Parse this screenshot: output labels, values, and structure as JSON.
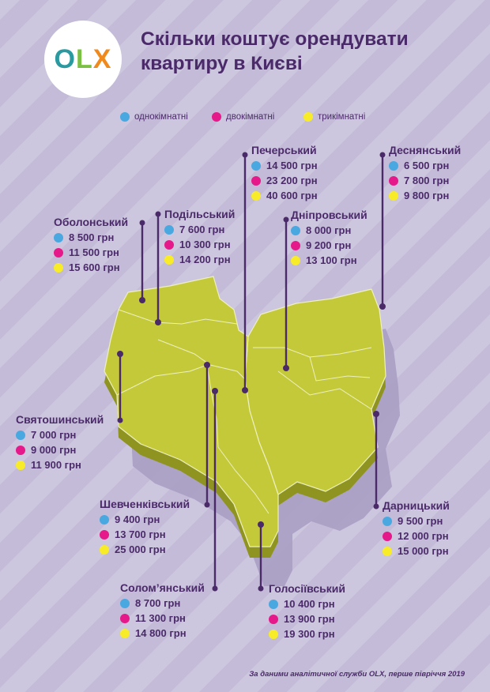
{
  "header": {
    "logo": {
      "letters": [
        "O",
        "L",
        "X"
      ],
      "colors": [
        "#2a9aa0",
        "#7bc043",
        "#f08a1c"
      ]
    },
    "title_line1": "Скільки коштує орендувати",
    "title_line2": "квартиру в Києві"
  },
  "legend": [
    {
      "label": "однокімнатні",
      "color": "#4aa8e0"
    },
    {
      "label": "двокімнатні",
      "color": "#e6198a"
    },
    {
      "label": "трикімнатні",
      "color": "#f7ec27"
    }
  ],
  "colors": {
    "background": "#c8c0dc",
    "map_fill": "#c4c93a",
    "map_outline": "#f2f2c0",
    "text": "#4b2a6a",
    "one_room": "#4aa8e0",
    "two_room": "#e6198a",
    "three_room": "#f7ec27"
  },
  "districts": [
    {
      "id": "pecherskyi",
      "name": "Печерський",
      "prices": [
        "14 500 грн",
        "23 200 грн",
        "40 600 грн"
      ]
    },
    {
      "id": "desnianskyi",
      "name": "Деснянський",
      "prices": [
        "6 500 грн",
        "7 800 грн",
        "9 800 грн"
      ]
    },
    {
      "id": "obolonskyi",
      "name": "Оболонський",
      "prices": [
        "8 500 грн",
        "11 500 грн",
        "15 600 грн"
      ]
    },
    {
      "id": "podilskyi",
      "name": "Подільський",
      "prices": [
        "7 600 грн",
        "10 300 грн",
        "14 200 грн"
      ]
    },
    {
      "id": "dniprovskyi",
      "name": "Дніпровський",
      "prices": [
        "8 000 грн",
        "9 200 грн",
        "13 100 грн"
      ]
    },
    {
      "id": "sviatoshynskyi",
      "name": "Святошинський",
      "prices": [
        "7 000 грн",
        "9 000 грн",
        "11 900 грн"
      ]
    },
    {
      "id": "shevchenkivskyi",
      "name": "Шевченківський",
      "prices": [
        "9 400 грн",
        "13 700 грн",
        "25 000 грн"
      ]
    },
    {
      "id": "darnytskyi",
      "name": "Дарницький",
      "prices": [
        "9 500 грн",
        "12 000 грн",
        "15 000 грн"
      ]
    },
    {
      "id": "solomianskyi",
      "name": "Солом’янський",
      "prices": [
        "8 700 грн",
        "11 300 грн",
        "14 800 грн"
      ]
    },
    {
      "id": "holosiivskyi",
      "name": "Голосіївський",
      "prices": [
        "10 400 грн",
        "13 900 грн",
        "19 300 грн"
      ]
    }
  ],
  "footer": "За даними аналітичної служби OLX, перше півріччя 2019"
}
